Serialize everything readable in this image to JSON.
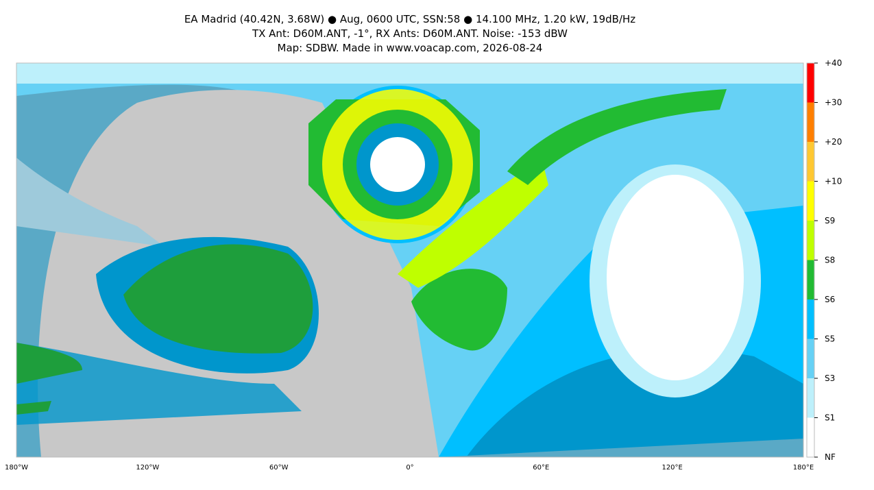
{
  "header": {
    "lines": [
      "EA Madrid (40.42N, 3.68W) ● Aug, 0600 UTC, SSN:58 ● 14.100 MHz, 1.20 kW, 19dB/Hz",
      "TX Ant: D60M.ANT, -1°, RX Ants: D60M.ANT. Noise: -153 dBW",
      "Map: SDBW. Made in www.voacap.com, 2026-08-24"
    ]
  },
  "x_axis_labels": [
    "180°W",
    "120°W",
    "60°W",
    "0°",
    "60°E",
    "120°E",
    "180°E"
  ],
  "colorbar": {
    "labels": [
      "+40",
      "+30",
      "+20",
      "+10",
      "S9",
      "S8",
      "S6",
      "S5",
      "S3",
      "S1",
      "NF"
    ],
    "colors": [
      "#ff0000",
      "#ff7f00",
      "#ffc832",
      "#ffff00",
      "#bfff00",
      "#22bb33",
      "#00bfff",
      "#66d1f5",
      "#bdf0fb",
      "#ffffff"
    ]
  }
}
